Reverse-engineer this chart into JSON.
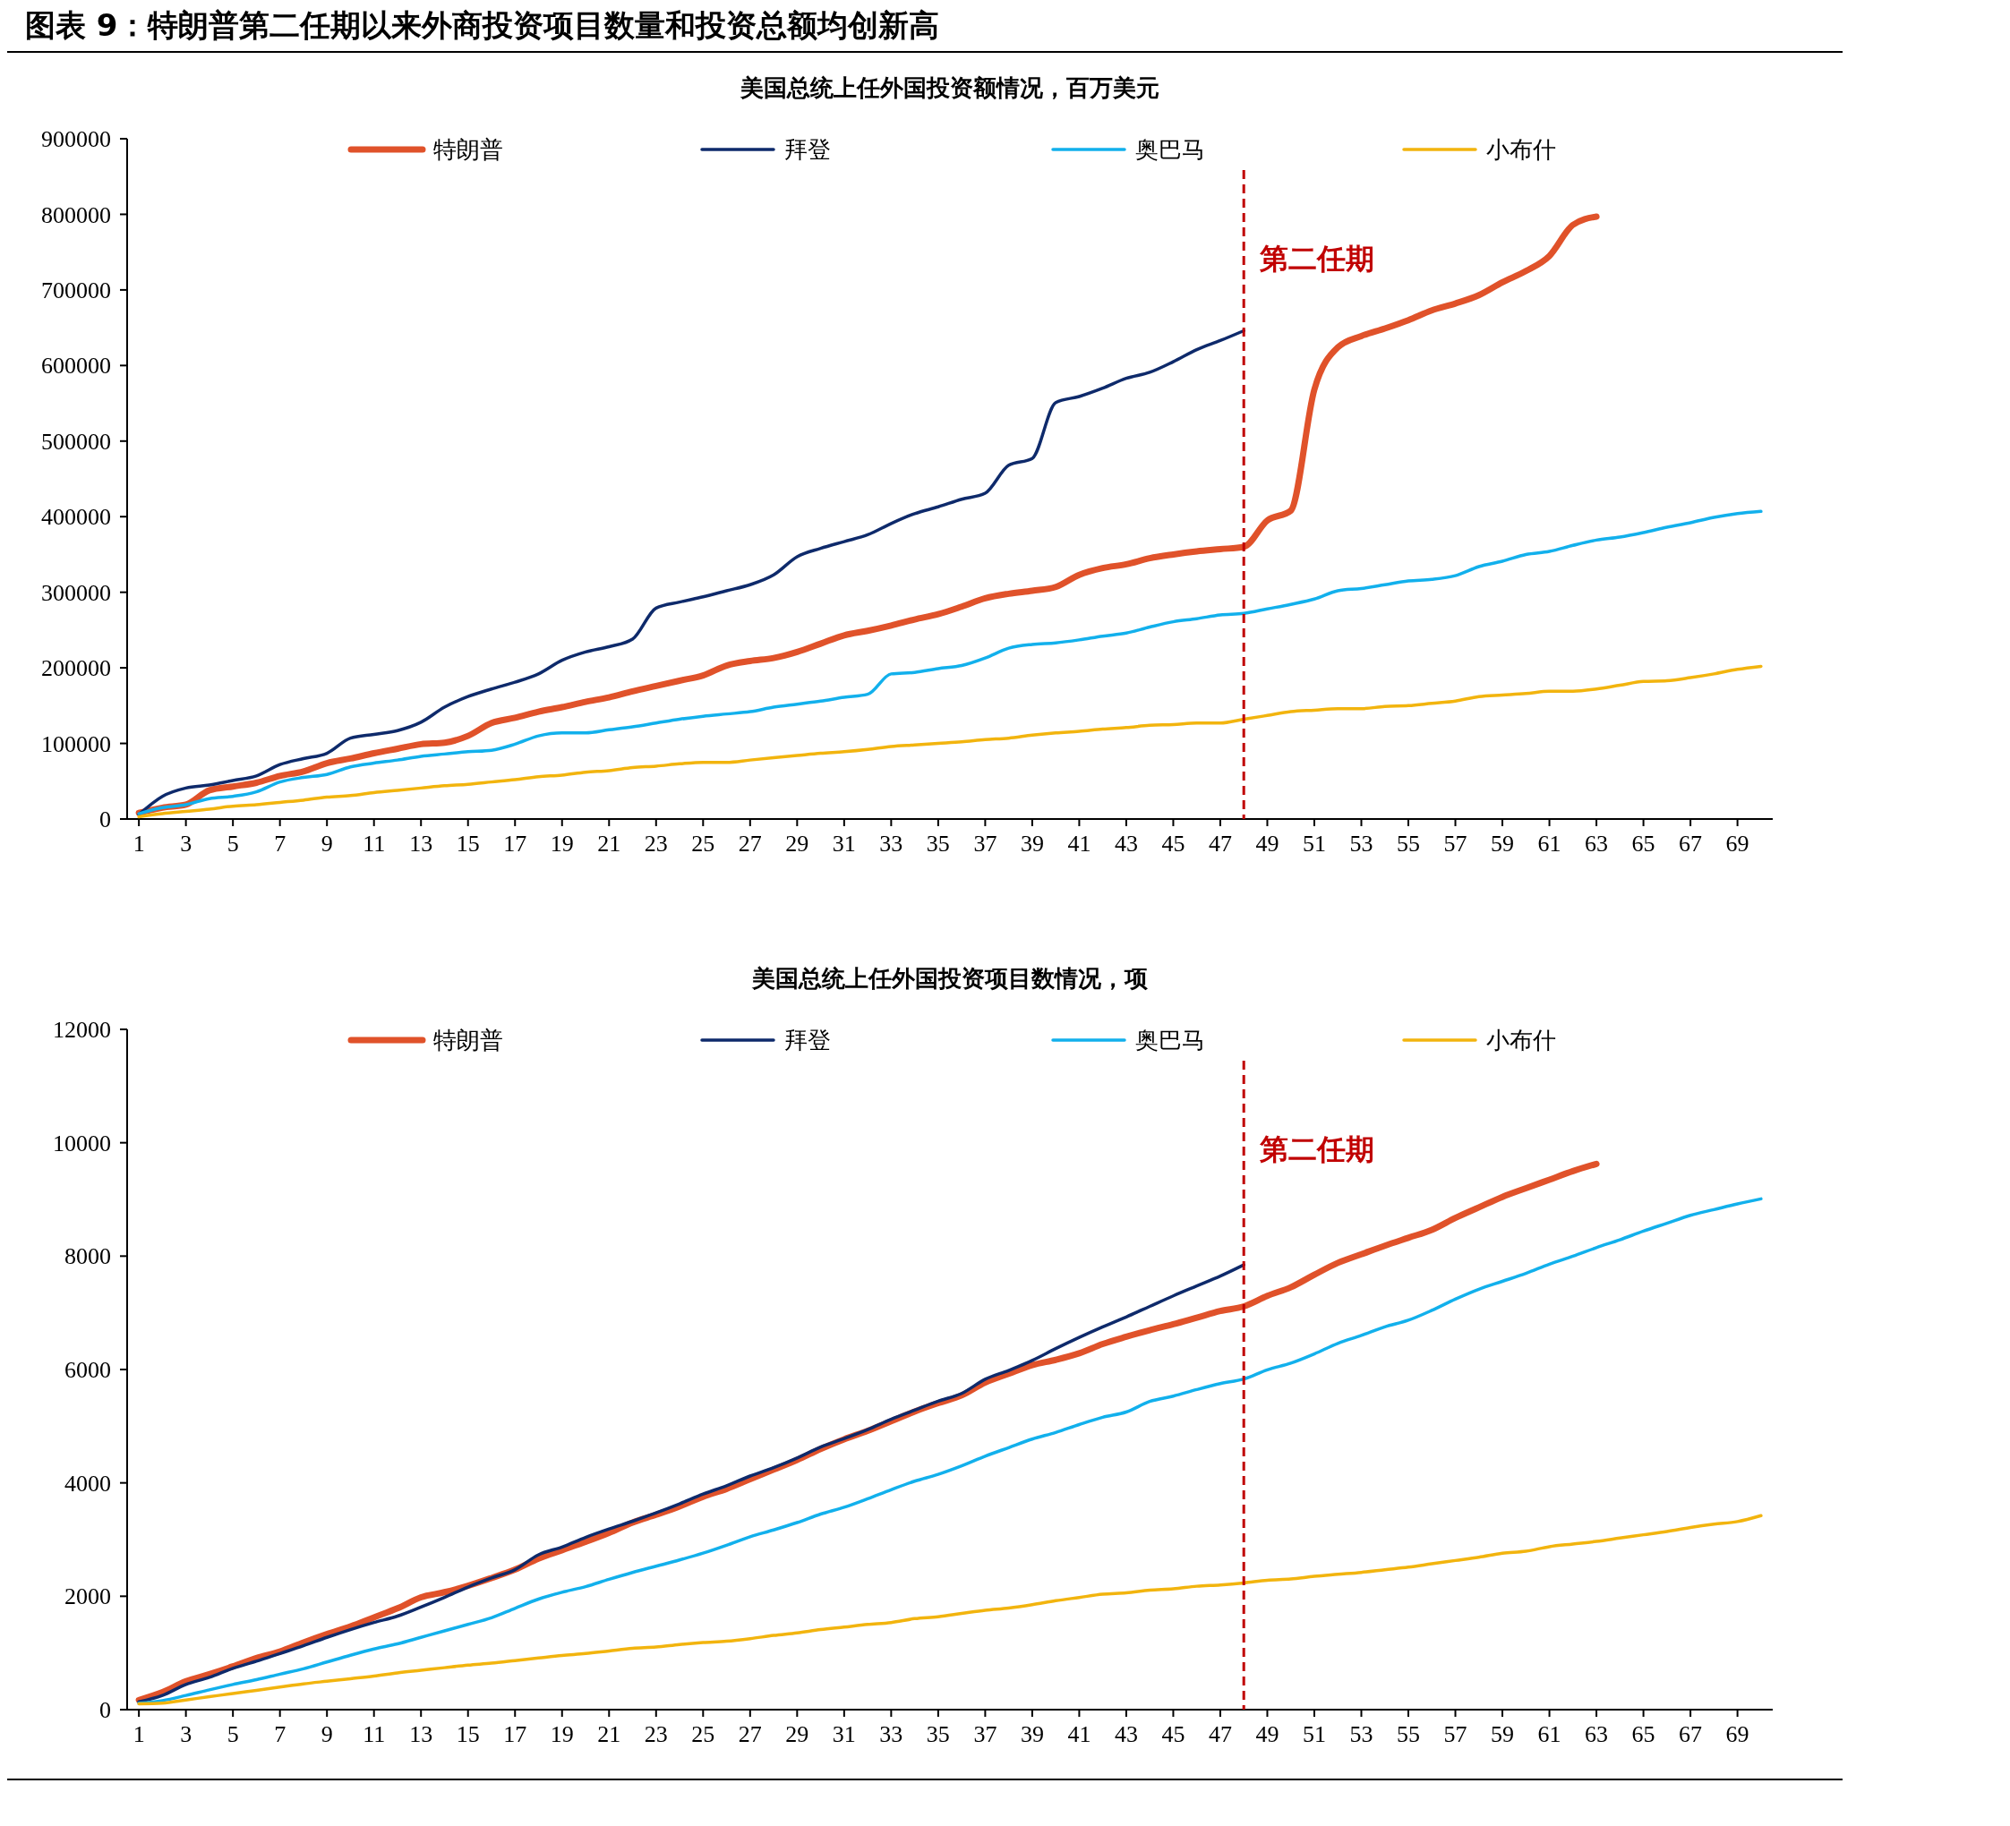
{
  "chart_data": [
    {
      "type": "line",
      "title": "图表 9：特朗普第二任期以来外商投资项目数量和投资总额均创新高",
      "subtitle": "美国总统上任外国投资额情况，百万美元",
      "x": [
        1,
        2,
        3,
        4,
        5,
        6,
        7,
        8,
        9,
        10,
        11,
        12,
        13,
        14,
        15,
        16,
        17,
        18,
        19,
        20,
        21,
        22,
        23,
        24,
        25,
        26,
        27,
        28,
        29,
        30,
        31,
        32,
        33,
        34,
        35,
        36,
        37,
        38,
        39,
        40,
        41,
        42,
        43,
        44,
        45,
        46,
        47,
        48,
        49,
        50,
        51,
        52,
        53,
        54,
        55,
        56,
        57,
        58,
        59,
        60,
        61,
        62,
        63,
        64,
        65,
        66,
        67,
        68,
        69,
        70
      ],
      "xlim": [
        0.5,
        70.5
      ],
      "xticks": [
        1,
        3,
        5,
        7,
        9,
        11,
        13,
        15,
        17,
        19,
        21,
        23,
        25,
        27,
        29,
        31,
        33,
        35,
        37,
        39,
        41,
        43,
        45,
        47,
        49,
        51,
        53,
        55,
        57,
        59,
        61,
        63,
        65,
        67,
        69
      ],
      "ylim": [
        0,
        900000
      ],
      "yticks": [
        0,
        100000,
        200000,
        300000,
        400000,
        500000,
        600000,
        700000,
        800000,
        900000
      ],
      "legend": "top",
      "series": [
        {
          "name": "特朗普",
          "color": "#e0522a",
          "values": [
            8000,
            15000,
            19000,
            38000,
            43000,
            48000,
            57000,
            63000,
            74000,
            80000,
            87000,
            93000,
            99000,
            101000,
            110000,
            127000,
            134000,
            142000,
            148000,
            155000,
            161000,
            169000,
            176000,
            183000,
            190000,
            203000,
            209000,
            213000,
            221000,
            232000,
            243000,
            249000,
            256000,
            264000,
            271000,
            281000,
            292000,
            298000,
            302000,
            307000,
            323000,
            332000,
            337000,
            345000,
            350000,
            354000,
            357000,
            360000,
            395000,
            408000,
            568000,
            624000,
            639000,
            649000,
            660000,
            673000,
            682000,
            693000,
            710000,
            725000,
            745000,
            786000,
            797000,
            null,
            null,
            null,
            null,
            null,
            null,
            null
          ]
        },
        {
          "name": "拜登",
          "color": "#0e2a6b",
          "values": [
            6000,
            30000,
            41000,
            45000,
            51000,
            57000,
            72000,
            80000,
            87000,
            107000,
            112000,
            117000,
            128000,
            148000,
            162000,
            172000,
            181000,
            192000,
            210000,
            221000,
            228000,
            238000,
            279000,
            287000,
            294000,
            302000,
            310000,
            323000,
            347000,
            358000,
            367000,
            376000,
            391000,
            404000,
            413000,
            423000,
            431000,
            468000,
            477000,
            551000,
            559000,
            570000,
            583000,
            591000,
            605000,
            621000,
            633000,
            646000,
            null,
            null,
            null,
            null,
            null,
            null,
            null,
            null,
            null,
            null,
            null,
            null,
            null,
            null,
            null,
            null,
            null,
            null,
            null,
            null,
            null,
            null
          ]
        },
        {
          "name": "奥巴马",
          "color": "#12b0ec",
          "values": [
            7000,
            15000,
            19000,
            27000,
            30000,
            36000,
            49000,
            55000,
            59000,
            69000,
            74000,
            78000,
            83000,
            86000,
            89000,
            91000,
            99000,
            110000,
            114000,
            114000,
            118000,
            122000,
            127000,
            132000,
            136000,
            139000,
            142000,
            148000,
            152000,
            156000,
            161000,
            165000,
            192000,
            194000,
            199000,
            203000,
            213000,
            226000,
            231000,
            233000,
            237000,
            242000,
            246000,
            254000,
            261000,
            265000,
            270000,
            272000,
            278000,
            284000,
            291000,
            302000,
            305000,
            310000,
            315000,
            317000,
            322000,
            334000,
            341000,
            350000,
            354000,
            362000,
            369000,
            373000,
            379000,
            386000,
            392000,
            399000,
            404000,
            407000
          ]
        },
        {
          "name": "小布什",
          "color": "#f2b40e",
          "values": [
            3000,
            7000,
            10000,
            13000,
            17000,
            19000,
            22000,
            25000,
            29000,
            31000,
            35000,
            38000,
            41000,
            44000,
            46000,
            49000,
            52000,
            56000,
            58000,
            62000,
            64000,
            68000,
            70000,
            73000,
            75000,
            75000,
            78000,
            81000,
            84000,
            87000,
            89000,
            92000,
            96000,
            98000,
            100000,
            102000,
            105000,
            107000,
            111000,
            114000,
            116000,
            119000,
            121000,
            124000,
            125000,
            127000,
            127000,
            132000,
            137000,
            142000,
            144000,
            146000,
            146000,
            149000,
            150000,
            153000,
            156000,
            162000,
            164000,
            166000,
            169000,
            169000,
            172000,
            177000,
            182000,
            183000,
            187000,
            192000,
            198000,
            202000
          ]
        }
      ],
      "ref_lines": [
        {
          "axis": "x",
          "value": 48,
          "label": "第二任期",
          "color": "#c00000",
          "line_style": "dashed"
        }
      ]
    },
    {
      "type": "line",
      "title": "美国总统上任外国投资项目数情况，项",
      "x": [
        1,
        2,
        3,
        4,
        5,
        6,
        7,
        8,
        9,
        10,
        11,
        12,
        13,
        14,
        15,
        16,
        17,
        18,
        19,
        20,
        21,
        22,
        23,
        24,
        25,
        26,
        27,
        28,
        29,
        30,
        31,
        32,
        33,
        34,
        35,
        36,
        37,
        38,
        39,
        40,
        41,
        42,
        43,
        44,
        45,
        46,
        47,
        48,
        49,
        50,
        51,
        52,
        53,
        54,
        55,
        56,
        57,
        58,
        59,
        60,
        61,
        62,
        63,
        64,
        65,
        66,
        67,
        68,
        69,
        70
      ],
      "xlim": [
        0.5,
        70.5
      ],
      "xticks": [
        1,
        3,
        5,
        7,
        9,
        11,
        13,
        15,
        17,
        19,
        21,
        23,
        25,
        27,
        29,
        31,
        33,
        35,
        37,
        39,
        41,
        43,
        45,
        47,
        49,
        51,
        53,
        55,
        57,
        59,
        61,
        63,
        65,
        67,
        69
      ],
      "ylim": [
        0,
        12000
      ],
      "yticks": [
        0,
        2000,
        4000,
        6000,
        8000,
        10000,
        12000
      ],
      "legend": "top",
      "series": [
        {
          "name": "特朗普",
          "color": "#e0522a",
          "values": [
            170,
            307,
            500,
            626,
            763,
            911,
            1025,
            1184,
            1332,
            1468,
            1628,
            1787,
            1981,
            2072,
            2185,
            2322,
            2470,
            2664,
            2812,
            2960,
            3119,
            3301,
            3438,
            3585,
            3756,
            3893,
            4064,
            4234,
            4405,
            4599,
            4770,
            4918,
            5088,
            5259,
            5407,
            5544,
            5771,
            5925,
            6077,
            6170,
            6286,
            6449,
            6577,
            6694,
            6799,
            6915,
            7031,
            7113,
            7299,
            7451,
            7672,
            7881,
            8033,
            8184,
            8324,
            8463,
            8673,
            8859,
            9045,
            9197,
            9348,
            9499,
            9627,
            null,
            null,
            null,
            null,
            null,
            null,
            null
          ]
        },
        {
          "name": "拜登",
          "color": "#0e2a6b",
          "values": [
            137,
            250,
            444,
            569,
            729,
            854,
            990,
            1127,
            1275,
            1412,
            1537,
            1650,
            1810,
            1981,
            2163,
            2322,
            2470,
            2732,
            2869,
            3039,
            3187,
            3324,
            3472,
            3631,
            3802,
            3950,
            4121,
            4268,
            4439,
            4633,
            4781,
            4940,
            5122,
            5282,
            5441,
            5578,
            5828,
            5984,
            6159,
            6368,
            6566,
            6752,
            6927,
            7113,
            7299,
            7474,
            7648,
            7846,
            null,
            null,
            null,
            null,
            null,
            null,
            null,
            null,
            null,
            null,
            null,
            null,
            null,
            null,
            null,
            null,
            null,
            null,
            null,
            null,
            null,
            null
          ]
        },
        {
          "name": "奥巴马",
          "color": "#12b0ec",
          "values": [
            114,
            160,
            250,
            350,
            444,
            530,
            626,
            720,
            840,
            960,
            1070,
            1160,
            1275,
            1390,
            1503,
            1620,
            1787,
            1950,
            2071,
            2170,
            2299,
            2420,
            2530,
            2640,
            2760,
            2900,
            3050,
            3170,
            3300,
            3450,
            3570,
            3720,
            3880,
            4030,
            4150,
            4300,
            4470,
            4622,
            4773,
            4889,
            5029,
            5157,
            5250,
            5437,
            5530,
            5646,
            5751,
            5832,
            5995,
            6112,
            6275,
            6461,
            6601,
            6752,
            6869,
            7043,
            7241,
            7416,
            7555,
            7695,
            7858,
            7998,
            8149,
            8289,
            8440,
            8580,
            8720,
            8820,
            8920,
            9010
          ]
        },
        {
          "name": "小布什",
          "color": "#f2b40e",
          "values": [
            102,
            114,
            171,
            228,
            285,
            341,
            398,
            455,
            501,
            546,
            592,
            649,
            694,
            740,
            785,
            820,
            865,
            911,
            956,
            990,
            1036,
            1081,
            1104,
            1150,
            1184,
            1207,
            1252,
            1309,
            1355,
            1412,
            1457,
            1503,
            1537,
            1605,
            1639,
            1696,
            1753,
            1793,
            1851,
            1921,
            1979,
            2037,
            2061,
            2107,
            2131,
            2177,
            2200,
            2235,
            2282,
            2305,
            2352,
            2387,
            2421,
            2468,
            2514,
            2573,
            2631,
            2689,
            2759,
            2794,
            2875,
            2922,
            2968,
            3027,
            3085,
            3143,
            3213,
            3271,
            3318,
            3423
          ]
        }
      ],
      "ref_lines": [
        {
          "axis": "x",
          "value": 48,
          "label": "第二任期",
          "color": "#c00000",
          "line_style": "dashed"
        }
      ]
    }
  ]
}
